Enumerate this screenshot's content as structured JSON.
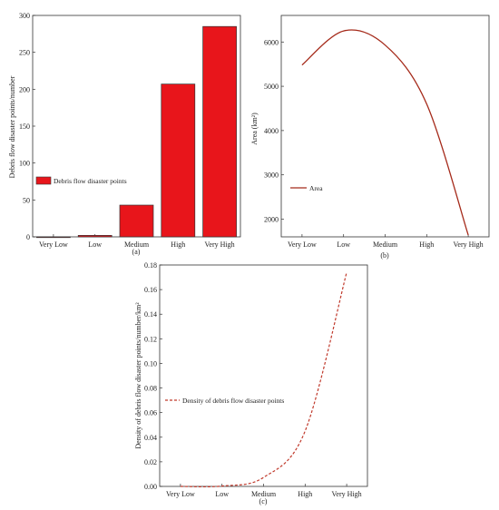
{
  "panels": [
    {
      "id": "a",
      "label": "(a)"
    },
    {
      "id": "b",
      "label": "(b)"
    },
    {
      "id": "c",
      "label": "(c)"
    }
  ],
  "chart_data": [
    {
      "type": "bar",
      "panel": "(a)",
      "categories": [
        "Very Low",
        "Low",
        "Medium",
        "High",
        "Very High"
      ],
      "series": [
        {
          "name": "Debris flow disaster points",
          "values": [
            0,
            2,
            43,
            207,
            285
          ]
        }
      ],
      "ylabel": "Debris flow disaster points/number",
      "xlabel": "",
      "ylim": [
        0,
        300
      ],
      "yticks": [
        0,
        50,
        100,
        150,
        200,
        250,
        300
      ],
      "color": "#e8151b",
      "legend": "left-middle"
    },
    {
      "type": "line",
      "panel": "(b)",
      "categories": [
        "Very Low",
        "Low",
        "Medium",
        "High",
        "Very High"
      ],
      "series": [
        {
          "name": "Area",
          "values": [
            5480,
            6250,
            5930,
            4600,
            1640
          ]
        }
      ],
      "ylabel": "Area (km²)",
      "xlabel": "",
      "ylim": [
        1600,
        6600
      ],
      "yticks": [
        2000,
        3000,
        4000,
        5000,
        6000
      ],
      "color": "#a52a1a",
      "legend": "left-bottom"
    },
    {
      "type": "line",
      "panel": "(c)",
      "categories": [
        "Very Low",
        "Low",
        "Medium",
        "High",
        "Very High"
      ],
      "series": [
        {
          "name": "Density of debris flow disaster points",
          "values": [
            0.0,
            0.0003,
            0.0073,
            0.045,
            0.174
          ]
        }
      ],
      "ylabel": "Density of debris flow disaster points/number/km²",
      "xlabel": "",
      "ylim": [
        0,
        0.18
      ],
      "yticks": [
        0.0,
        0.02,
        0.04,
        0.06,
        0.08,
        0.1,
        0.12,
        0.14,
        0.16,
        0.18
      ],
      "ytick_labels": [
        "0.00",
        "0.02",
        "0.04",
        "0.06",
        "0.08",
        "0.10",
        "0.12",
        "0.14",
        "0.16",
        "0.18"
      ],
      "color": "#c0392b",
      "line_style": "dashed",
      "legend": "left-middle"
    }
  ]
}
